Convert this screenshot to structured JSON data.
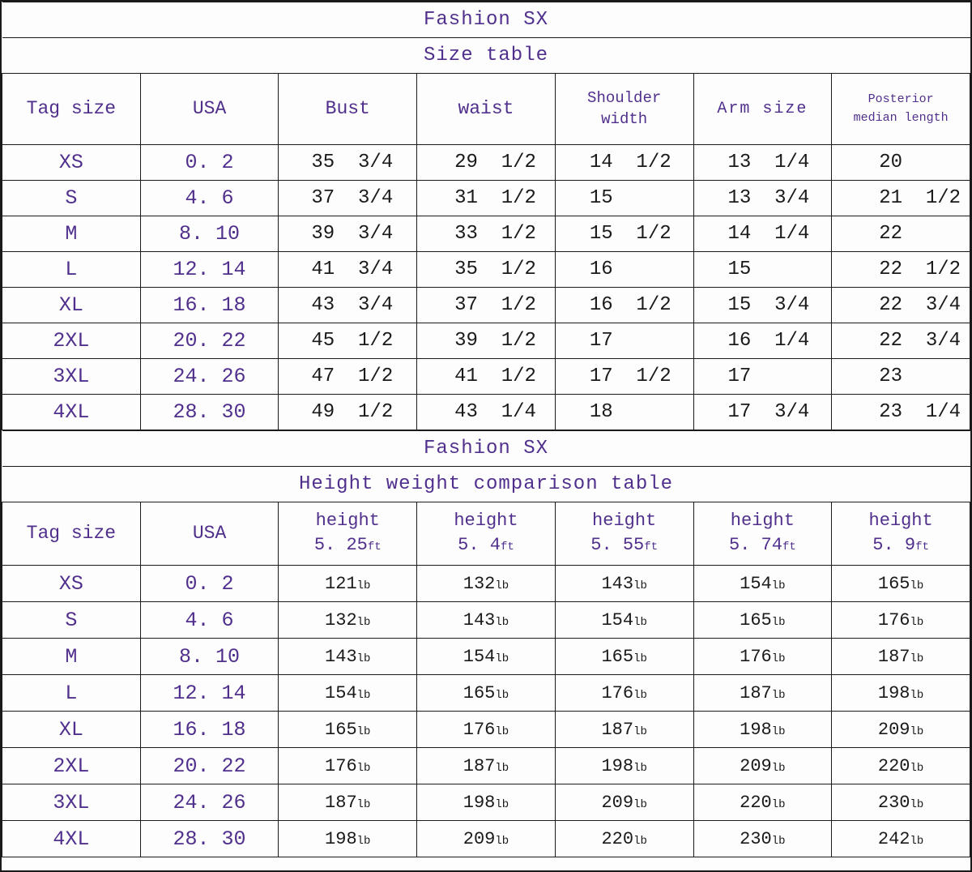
{
  "colors": {
    "purple": "#50308c",
    "ink": "#1a1a1a",
    "border": "#1a1a1a",
    "background": "#fdfdfd"
  },
  "table1": {
    "title": "Fashion SX",
    "subtitle": "Size table",
    "headers": [
      {
        "text": "Tag size"
      },
      {
        "text": "USA"
      },
      {
        "text": "Bust"
      },
      {
        "text": "waist"
      },
      {
        "text": "Shoulder\nwidth"
      },
      {
        "text": "Arm size"
      },
      {
        "text": "Posterior\nmedian length"
      }
    ],
    "rows": [
      {
        "tag": "XS",
        "usa": "0. 2",
        "values": [
          "35  3/4",
          "29  1/2",
          "14  1/2",
          "13  1/4",
          "20"
        ]
      },
      {
        "tag": "S",
        "usa": "4. 6",
        "values": [
          "37  3/4",
          "31  1/2",
          "15",
          "13  3/4",
          "21  1/2"
        ]
      },
      {
        "tag": "M",
        "usa": "8. 10",
        "values": [
          "39  3/4",
          "33  1/2",
          "15  1/2",
          "14  1/4",
          "22"
        ]
      },
      {
        "tag": "L",
        "usa": "12. 14",
        "values": [
          "41  3/4",
          "35  1/2",
          "16",
          "15",
          "22  1/2"
        ]
      },
      {
        "tag": "XL",
        "usa": "16. 18",
        "values": [
          "43  3/4",
          "37  1/2",
          "16  1/2",
          "15  3/4",
          "22  3/4"
        ]
      },
      {
        "tag": "2XL",
        "usa": "20. 22",
        "values": [
          "45  1/2",
          "39  1/2",
          "17",
          "16  1/4",
          "22  3/4"
        ]
      },
      {
        "tag": "3XL",
        "usa": "24. 26",
        "values": [
          "47  1/2",
          "41  1/2",
          "17  1/2",
          "17",
          "23"
        ]
      },
      {
        "tag": "4XL",
        "usa": "28. 30",
        "values": [
          "49  1/2",
          "43  1/4",
          "18",
          "17  3/4",
          "23  1/4"
        ]
      }
    ]
  },
  "table2": {
    "title": "Fashion SX",
    "subtitle": "Height weight comparison table",
    "unit_height": "ft",
    "unit_weight": "lb",
    "headers": [
      {
        "text": "Tag size"
      },
      {
        "text": "USA"
      },
      {
        "label": "height",
        "value": "5. 25"
      },
      {
        "label": "height",
        "value": "5. 4"
      },
      {
        "label": "height",
        "value": "5. 55"
      },
      {
        "label": "height",
        "value": "5. 74"
      },
      {
        "label": "height",
        "value": "5. 9"
      }
    ],
    "rows": [
      {
        "tag": "XS",
        "usa": "0. 2",
        "weights": [
          "121",
          "132",
          "143",
          "154",
          "165"
        ]
      },
      {
        "tag": "S",
        "usa": "4. 6",
        "weights": [
          "132",
          "143",
          "154",
          "165",
          "176"
        ]
      },
      {
        "tag": "M",
        "usa": "8. 10",
        "weights": [
          "143",
          "154",
          "165",
          "176",
          "187"
        ]
      },
      {
        "tag": "L",
        "usa": "12. 14",
        "weights": [
          "154",
          "165",
          "176",
          "187",
          "198"
        ]
      },
      {
        "tag": "XL",
        "usa": "16. 18",
        "weights": [
          "165",
          "176",
          "187",
          "198",
          "209"
        ]
      },
      {
        "tag": "2XL",
        "usa": "20. 22",
        "weights": [
          "176",
          "187",
          "198",
          "209",
          "220"
        ]
      },
      {
        "tag": "3XL",
        "usa": "24. 26",
        "weights": [
          "187",
          "198",
          "209",
          "220",
          "230"
        ]
      },
      {
        "tag": "4XL",
        "usa": "28. 30",
        "weights": [
          "198",
          "209",
          "220",
          "230",
          "242"
        ]
      }
    ]
  },
  "chart_data": [
    {
      "type": "table",
      "title": "Fashion SX",
      "subtitle": "Size table",
      "columns": [
        "Tag size",
        "USA",
        "Bust",
        "waist",
        "Shoulder width",
        "Arm size",
        "Posterior median length"
      ],
      "rows": [
        [
          "XS",
          "0.2",
          "35 3/4",
          "29 1/2",
          "14 1/2",
          "13 1/4",
          "20"
        ],
        [
          "S",
          "4.6",
          "37 3/4",
          "31 1/2",
          "15",
          "13 3/4",
          "21 1/2"
        ],
        [
          "M",
          "8.10",
          "39 3/4",
          "33 1/2",
          "15 1/2",
          "14 1/4",
          "22"
        ],
        [
          "L",
          "12.14",
          "41 3/4",
          "35 1/2",
          "16",
          "15",
          "22 1/2"
        ],
        [
          "XL",
          "16.18",
          "43 3/4",
          "37 1/2",
          "16 1/2",
          "15 3/4",
          "22 3/4"
        ],
        [
          "2XL",
          "20.22",
          "45 1/2",
          "39 1/2",
          "17",
          "16 1/4",
          "22 3/4"
        ],
        [
          "3XL",
          "24.26",
          "47 1/2",
          "41 1/2",
          "17 1/2",
          "17",
          "23"
        ],
        [
          "4XL",
          "28.30",
          "49 1/2",
          "43 1/4",
          "18",
          "17 3/4",
          "23 1/4"
        ]
      ]
    },
    {
      "type": "table",
      "title": "Fashion SX",
      "subtitle": "Height weight comparison table",
      "columns": [
        "Tag size",
        "USA",
        "height 5.25ft",
        "height 5.4ft",
        "height 5.55ft",
        "height 5.74ft",
        "height 5.9ft"
      ],
      "rows": [
        [
          "XS",
          "0.2",
          "121lb",
          "132lb",
          "143lb",
          "154lb",
          "165lb"
        ],
        [
          "S",
          "4.6",
          "132lb",
          "143lb",
          "154lb",
          "165lb",
          "176lb"
        ],
        [
          "M",
          "8.10",
          "143lb",
          "154lb",
          "165lb",
          "176lb",
          "187lb"
        ],
        [
          "L",
          "12.14",
          "154lb",
          "165lb",
          "176lb",
          "187lb",
          "198lb"
        ],
        [
          "XL",
          "16.18",
          "165lb",
          "176lb",
          "187lb",
          "198lb",
          "209lb"
        ],
        [
          "2XL",
          "20.22",
          "176lb",
          "187lb",
          "198lb",
          "209lb",
          "220lb"
        ],
        [
          "3XL",
          "24.26",
          "187lb",
          "198lb",
          "209lb",
          "220lb",
          "230lb"
        ],
        [
          "4XL",
          "28.30",
          "198lb",
          "209lb",
          "220lb",
          "230lb",
          "242lb"
        ]
      ]
    }
  ]
}
